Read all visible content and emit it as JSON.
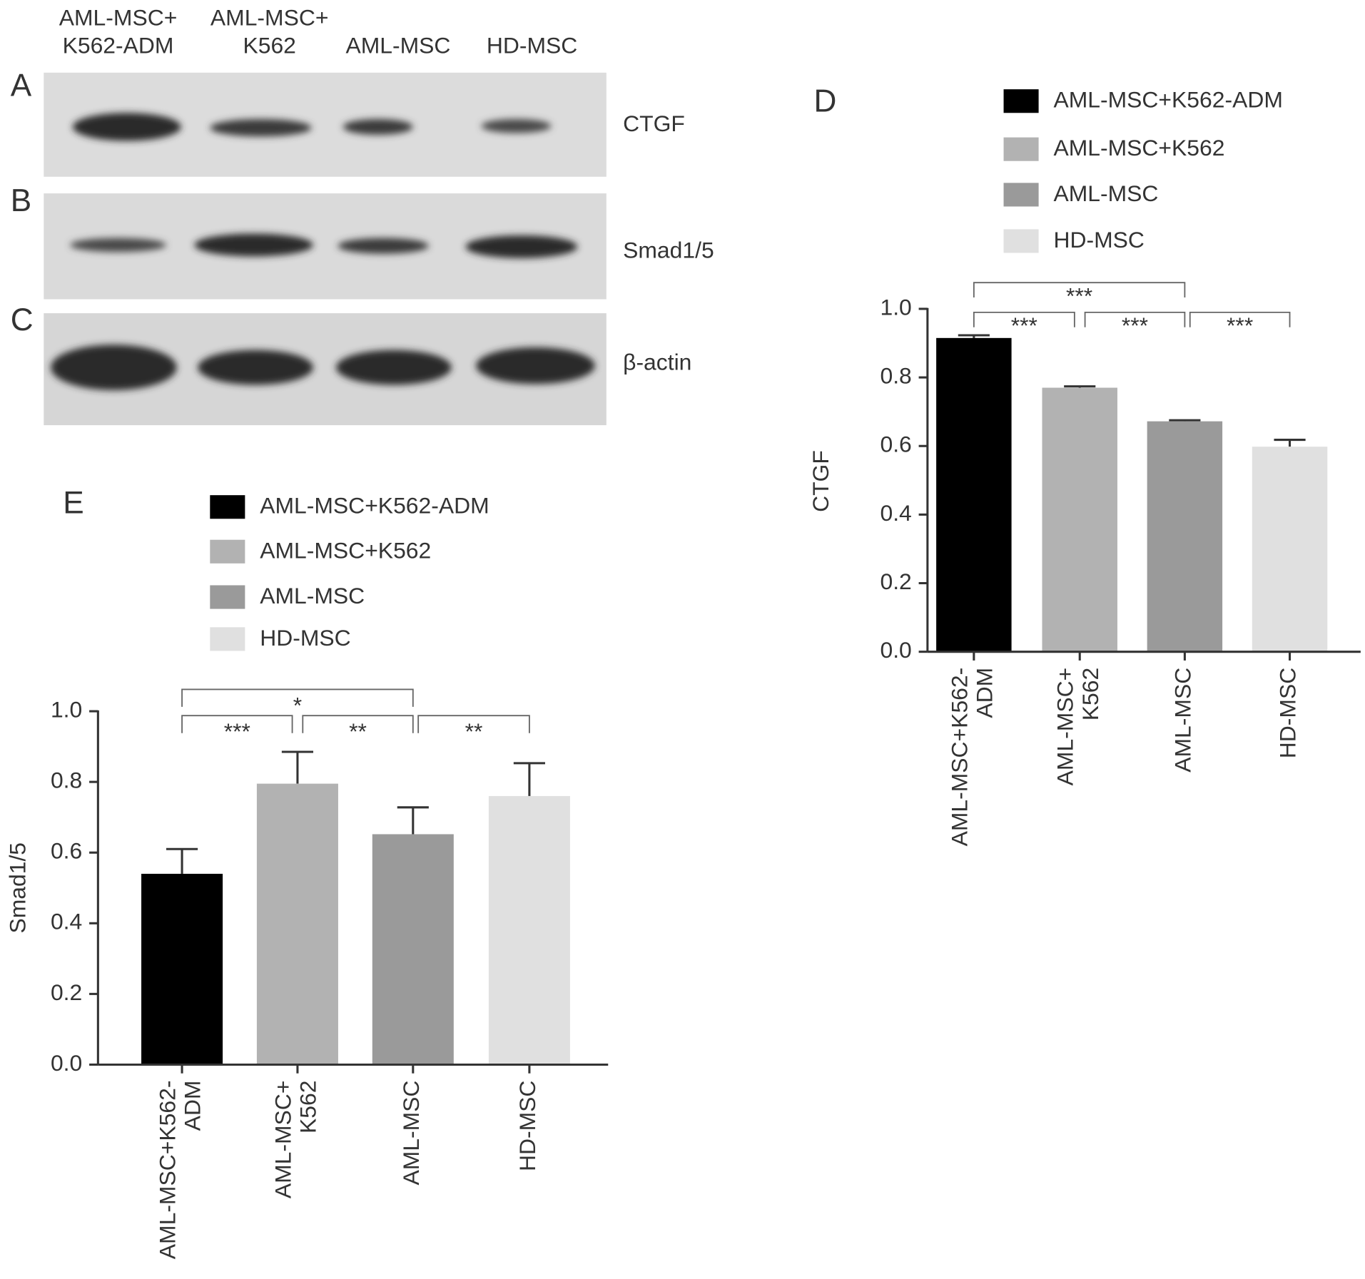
{
  "blot": {
    "lanes": [
      [
        "AML-MSC+",
        "K562-ADM"
      ],
      [
        "AML-MSC+",
        "K562"
      ],
      [
        "AML-MSC"
      ],
      [
        "HD-MSC"
      ]
    ],
    "panels": [
      {
        "letter": "A",
        "label": "CTGF"
      },
      {
        "letter": "B",
        "label": "Smad1/5"
      },
      {
        "letter": "C",
        "label": "β-actin"
      }
    ]
  },
  "chart_data": [
    {
      "type": "bar",
      "panel": "D",
      "y_label": "CTGF",
      "categories": [
        "AML-MSC+K562-ADM",
        "AML-MSC+K562",
        "AML-MSC",
        "HD-MSC"
      ],
      "colors": [
        "#000000",
        "#b2b2b2",
        "#9a9a9a",
        "#e0e0e0"
      ],
      "values": [
        0.915,
        0.77,
        0.672,
        0.598
      ],
      "errors": [
        0.008,
        0.004,
        0.003,
        0.02
      ],
      "ylim": [
        0,
        1
      ],
      "yticks": [
        {
          "value": 0,
          "label": "0.0"
        },
        {
          "value": 0.2,
          "label": "0.2"
        },
        {
          "value": 0.4,
          "label": "0.4"
        },
        {
          "value": 0.6,
          "label": "0.6"
        },
        {
          "value": 0.8,
          "label": "0.8"
        },
        {
          "value": 1,
          "label": "1.0"
        }
      ],
      "significance": [
        {
          "between": [
            0,
            2
          ],
          "label": "***"
        },
        {
          "between": [
            0,
            1
          ],
          "label": "***"
        },
        {
          "between": [
            1,
            2
          ],
          "label": "***"
        },
        {
          "between": [
            2,
            3
          ],
          "label": "***"
        }
      ]
    },
    {
      "type": "bar",
      "panel": "E",
      "y_label": "Smad1/5",
      "categories": [
        "AML-MSC+K562-ADM",
        "AML-MSC+K562",
        "AML-MSC",
        "HD-MSC"
      ],
      "colors": [
        "#000000",
        "#b2b2b2",
        "#9a9a9a",
        "#e0e0e0"
      ],
      "values": [
        0.54,
        0.795,
        0.652,
        0.76
      ],
      "errors": [
        0.07,
        0.09,
        0.076,
        0.093
      ],
      "ylim": [
        0,
        1
      ],
      "yticks": [
        {
          "value": 0,
          "label": "0.0"
        },
        {
          "value": 0.2,
          "label": "0.2"
        },
        {
          "value": 0.4,
          "label": "0.4"
        },
        {
          "value": 0.6,
          "label": "0.6"
        },
        {
          "value": 0.8,
          "label": "0.8"
        },
        {
          "value": 1,
          "label": "1.0"
        }
      ],
      "significance": [
        {
          "between": [
            0,
            2
          ],
          "label": "*"
        },
        {
          "between": [
            0,
            1
          ],
          "label": "***"
        },
        {
          "between": [
            1,
            2
          ],
          "label": "**"
        },
        {
          "between": [
            2,
            3
          ],
          "label": "**"
        }
      ]
    }
  ]
}
